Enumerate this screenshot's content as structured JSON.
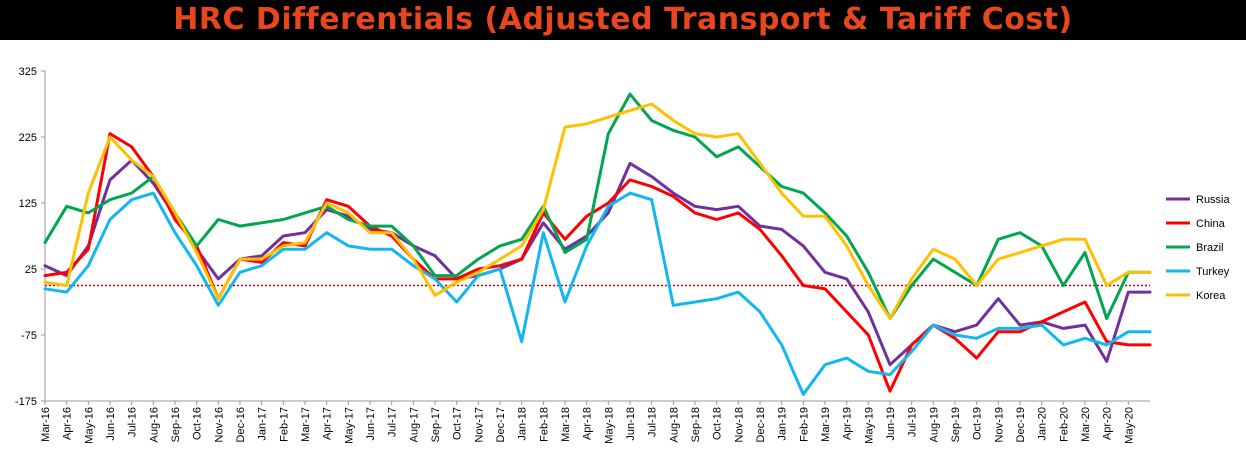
{
  "chart_data": {
    "type": "line",
    "title": "HRC Differentials (Adjusted Transport & Tariff Cost)",
    "ylim": [
      -175,
      325
    ],
    "yticks": [
      325,
      225,
      125,
      25,
      -75,
      -175
    ],
    "baseline": {
      "value": 0,
      "color": "#c00000",
      "style": "dotted"
    },
    "grid": false,
    "legend_position": "right",
    "x_tick_labels": [
      "Mar-16",
      "Apr-16",
      "May-16",
      "Jun-16",
      "Jul-16",
      "Aug-16",
      "Sep-16",
      "Oct-16",
      "Nov-16",
      "Dec-16",
      "Jan-17",
      "Feb-17",
      "Mar-17",
      "Apr-17",
      "May-17",
      "Jun-17",
      "Jul-17",
      "Aug-17",
      "Sep-17",
      "Oct-17",
      "Nov-17",
      "Dec-17",
      "Jan-18",
      "Feb-18",
      "Mar-18",
      "Apr-18",
      "May-18",
      "Jun-18",
      "Jul-18",
      "Aug-18",
      "Sep-18",
      "Oct-18",
      "Nov-18",
      "Dec-18",
      "Jan-19",
      "Feb-19",
      "Mar-19",
      "Apr-19",
      "May-19",
      "Jun-19",
      "Jul-19",
      "Aug-19",
      "Sep-19",
      "Oct-19",
      "Nov-19",
      "Dec-19",
      "Jan-20",
      "Feb-20",
      "Mar-20",
      "Apr-20",
      "May-20"
    ],
    "x_start": "Mar-16",
    "x_end": "Jun-20",
    "series": [
      {
        "name": "Russia",
        "color": "#7030a0",
        "points": [
          [
            "Mar-16",
            30
          ],
          [
            "Apr-16",
            15
          ],
          [
            "May-16",
            60
          ],
          [
            "Jun-16",
            160
          ],
          [
            "Jul-16",
            190
          ],
          [
            "Aug-16",
            155
          ],
          [
            "Sep-16",
            105
          ],
          [
            "Oct-16",
            55
          ],
          [
            "Nov-16",
            10
          ],
          [
            "Dec-16",
            40
          ],
          [
            "Jan-17",
            45
          ],
          [
            "Feb-17",
            75
          ],
          [
            "Mar-17",
            80
          ],
          [
            "Apr-17",
            115
          ],
          [
            "May-17",
            105
          ],
          [
            "Jun-17",
            85
          ],
          [
            "Jul-17",
            80
          ],
          [
            "Aug-17",
            60
          ],
          [
            "Sep-17",
            45
          ],
          [
            "Oct-17",
            10
          ],
          [
            "Nov-17",
            15
          ],
          [
            "Dec-17",
            25
          ],
          [
            "Jan-18",
            40
          ],
          [
            "Feb-18",
            95
          ],
          [
            "Mar-18",
            55
          ],
          [
            "Apr-18",
            75
          ],
          [
            "May-18",
            110
          ],
          [
            "Jun-18",
            185
          ],
          [
            "Jul-18",
            165
          ],
          [
            "Aug-18",
            140
          ],
          [
            "Sep-18",
            120
          ],
          [
            "Oct-18",
            115
          ],
          [
            "Nov-18",
            120
          ],
          [
            "Dec-18",
            90
          ],
          [
            "Jan-19",
            85
          ],
          [
            "Feb-19",
            60
          ],
          [
            "Mar-19",
            20
          ],
          [
            "Apr-19",
            10
          ],
          [
            "May-19",
            -40
          ],
          [
            "Jun-19",
            -120
          ],
          [
            "Jul-19",
            -90
          ],
          [
            "Aug-19",
            -60
          ],
          [
            "Sep-19",
            -70
          ],
          [
            "Oct-19",
            -60
          ],
          [
            "Nov-19",
            -20
          ],
          [
            "Dec-19",
            -60
          ],
          [
            "Jan-20",
            -55
          ],
          [
            "Feb-20",
            -65
          ],
          [
            "Mar-20",
            -60
          ],
          [
            "Apr-20",
            -115
          ],
          [
            "May-20",
            -10
          ],
          [
            "Jun-20",
            -10
          ]
        ]
      },
      {
        "name": "China",
        "color": "#ff0000",
        "points": [
          [
            "Mar-16",
            15
          ],
          [
            "Apr-16",
            20
          ],
          [
            "May-16",
            55
          ],
          [
            "Jun-16",
            230
          ],
          [
            "Jul-16",
            210
          ],
          [
            "Aug-16",
            165
          ],
          [
            "Sep-16",
            100
          ],
          [
            "Oct-16",
            60
          ],
          [
            "Nov-16",
            -20
          ],
          [
            "Dec-16",
            40
          ],
          [
            "Jan-17",
            35
          ],
          [
            "Feb-17",
            65
          ],
          [
            "Mar-17",
            60
          ],
          [
            "Apr-17",
            130
          ],
          [
            "May-17",
            120
          ],
          [
            "Jun-17",
            90
          ],
          [
            "Jul-17",
            75
          ],
          [
            "Aug-17",
            40
          ],
          [
            "Sep-17",
            10
          ],
          [
            "Oct-17",
            10
          ],
          [
            "Nov-17",
            25
          ],
          [
            "Dec-17",
            30
          ],
          [
            "Jan-18",
            40
          ],
          [
            "Feb-18",
            110
          ],
          [
            "Mar-18",
            70
          ],
          [
            "Apr-18",
            105
          ],
          [
            "May-18",
            125
          ],
          [
            "Jun-18",
            160
          ],
          [
            "Jul-18",
            150
          ],
          [
            "Aug-18",
            135
          ],
          [
            "Sep-18",
            110
          ],
          [
            "Oct-18",
            100
          ],
          [
            "Nov-18",
            110
          ],
          [
            "Dec-18",
            85
          ],
          [
            "Jan-19",
            45
          ],
          [
            "Feb-19",
            0
          ],
          [
            "Mar-19",
            -5
          ],
          [
            "Apr-19",
            -40
          ],
          [
            "May-19",
            -75
          ],
          [
            "Jun-19",
            -160
          ],
          [
            "Jul-19",
            -90
          ],
          [
            "Aug-19",
            -60
          ],
          [
            "Sep-19",
            -80
          ],
          [
            "Oct-19",
            -110
          ],
          [
            "Nov-19",
            -70
          ],
          [
            "Dec-19",
            -70
          ],
          [
            "Jan-20",
            -55
          ],
          [
            "Feb-20",
            -40
          ],
          [
            "Mar-20",
            -25
          ],
          [
            "Apr-20",
            -85
          ],
          [
            "May-20",
            -90
          ],
          [
            "Jun-20",
            -90
          ]
        ]
      },
      {
        "name": "Brazil",
        "color": "#00a650",
        "points": [
          [
            "Mar-16",
            65
          ],
          [
            "Apr-16",
            120
          ],
          [
            "May-16",
            110
          ],
          [
            "Jun-16",
            130
          ],
          [
            "Jul-16",
            140
          ],
          [
            "Aug-16",
            165
          ],
          [
            "Sep-16",
            110
          ],
          [
            "Oct-16",
            60
          ],
          [
            "Nov-16",
            100
          ],
          [
            "Dec-16",
            90
          ],
          [
            "Jan-17",
            95
          ],
          [
            "Feb-17",
            100
          ],
          [
            "Mar-17",
            110
          ],
          [
            "Apr-17",
            120
          ],
          [
            "May-17",
            100
          ],
          [
            "Jun-17",
            90
          ],
          [
            "Jul-17",
            90
          ],
          [
            "Aug-17",
            60
          ],
          [
            "Sep-17",
            15
          ],
          [
            "Oct-17",
            15
          ],
          [
            "Nov-17",
            40
          ],
          [
            "Dec-17",
            60
          ],
          [
            "Jan-18",
            70
          ],
          [
            "Feb-18",
            120
          ],
          [
            "Mar-18",
            50
          ],
          [
            "Apr-18",
            70
          ],
          [
            "May-18",
            230
          ],
          [
            "Jun-18",
            290
          ],
          [
            "Jul-18",
            250
          ],
          [
            "Aug-18",
            235
          ],
          [
            "Sep-18",
            225
          ],
          [
            "Oct-18",
            195
          ],
          [
            "Nov-18",
            210
          ],
          [
            "Dec-18",
            180
          ],
          [
            "Jan-19",
            150
          ],
          [
            "Feb-19",
            140
          ],
          [
            "Mar-19",
            110
          ],
          [
            "Apr-19",
            75
          ],
          [
            "May-19",
            20
          ],
          [
            "Jun-19",
            -50
          ],
          [
            "Jul-19",
            0
          ],
          [
            "Aug-19",
            40
          ],
          [
            "Sep-19",
            20
          ],
          [
            "Oct-19",
            0
          ],
          [
            "Nov-19",
            70
          ],
          [
            "Dec-19",
            80
          ],
          [
            "Jan-20",
            60
          ],
          [
            "Feb-20",
            0
          ],
          [
            "Mar-20",
            50
          ],
          [
            "Apr-20",
            -50
          ],
          [
            "May-20",
            20
          ],
          [
            "Jun-20",
            20
          ]
        ]
      },
      {
        "name": "Turkey",
        "color": "#12b7ef",
        "points": [
          [
            "Mar-16",
            -5
          ],
          [
            "Apr-16",
            -10
          ],
          [
            "May-16",
            30
          ],
          [
            "Jun-16",
            100
          ],
          [
            "Jul-16",
            130
          ],
          [
            "Aug-16",
            140
          ],
          [
            "Sep-16",
            80
          ],
          [
            "Oct-16",
            30
          ],
          [
            "Nov-16",
            -30
          ],
          [
            "Dec-16",
            20
          ],
          [
            "Jan-17",
            30
          ],
          [
            "Feb-17",
            55
          ],
          [
            "Mar-17",
            55
          ],
          [
            "Apr-17",
            80
          ],
          [
            "May-17",
            60
          ],
          [
            "Jun-17",
            55
          ],
          [
            "Jul-17",
            55
          ],
          [
            "Aug-17",
            30
          ],
          [
            "Sep-17",
            10
          ],
          [
            "Oct-17",
            -25
          ],
          [
            "Nov-17",
            15
          ],
          [
            "Dec-17",
            25
          ],
          [
            "Jan-18",
            -85
          ],
          [
            "Feb-18",
            80
          ],
          [
            "Mar-18",
            -25
          ],
          [
            "Apr-18",
            60
          ],
          [
            "May-18",
            120
          ],
          [
            "Jun-18",
            140
          ],
          [
            "Jul-18",
            130
          ],
          [
            "Aug-18",
            -30
          ],
          [
            "Sep-18",
            -25
          ],
          [
            "Oct-18",
            -20
          ],
          [
            "Nov-18",
            -10
          ],
          [
            "Dec-18",
            -40
          ],
          [
            "Jan-19",
            -90
          ],
          [
            "Feb-19",
            -165
          ],
          [
            "Mar-19",
            -120
          ],
          [
            "Apr-19",
            -110
          ],
          [
            "May-19",
            -130
          ],
          [
            "Jun-19",
            -135
          ],
          [
            "Jul-19",
            -100
          ],
          [
            "Aug-19",
            -60
          ],
          [
            "Sep-19",
            -75
          ],
          [
            "Oct-19",
            -80
          ],
          [
            "Nov-19",
            -65
          ],
          [
            "Dec-19",
            -65
          ],
          [
            "Jan-20",
            -60
          ],
          [
            "Feb-20",
            -90
          ],
          [
            "Mar-20",
            -80
          ],
          [
            "Apr-20",
            -90
          ],
          [
            "May-20",
            -70
          ],
          [
            "Jun-20",
            -70
          ]
        ]
      },
      {
        "name": "Korea",
        "color": "#ffc000",
        "points": [
          [
            "Mar-16",
            5
          ],
          [
            "Apr-16",
            0
          ],
          [
            "May-16",
            140
          ],
          [
            "Jun-16",
            225
          ],
          [
            "Jul-16",
            190
          ],
          [
            "Aug-16",
            165
          ],
          [
            "Sep-16",
            110
          ],
          [
            "Oct-16",
            50
          ],
          [
            "Nov-16",
            -20
          ],
          [
            "Dec-16",
            40
          ],
          [
            "Jan-17",
            40
          ],
          [
            "Feb-17",
            60
          ],
          [
            "Mar-17",
            65
          ],
          [
            "Apr-17",
            125
          ],
          [
            "May-17",
            110
          ],
          [
            "Jun-17",
            80
          ],
          [
            "Jul-17",
            80
          ],
          [
            "Aug-17",
            40
          ],
          [
            "Sep-17",
            -15
          ],
          [
            "Oct-17",
            5
          ],
          [
            "Nov-17",
            20
          ],
          [
            "Dec-17",
            40
          ],
          [
            "Jan-18",
            60
          ],
          [
            "Feb-18",
            115
          ],
          [
            "Mar-18",
            240
          ],
          [
            "Apr-18",
            245
          ],
          [
            "May-18",
            255
          ],
          [
            "Jun-18",
            265
          ],
          [
            "Jul-18",
            275
          ],
          [
            "Aug-18",
            250
          ],
          [
            "Sep-18",
            230
          ],
          [
            "Oct-18",
            225
          ],
          [
            "Nov-18",
            230
          ],
          [
            "Dec-18",
            185
          ],
          [
            "Jan-19",
            140
          ],
          [
            "Feb-19",
            105
          ],
          [
            "Mar-19",
            105
          ],
          [
            "Apr-19",
            60
          ],
          [
            "May-19",
            0
          ],
          [
            "Jun-19",
            -50
          ],
          [
            "Jul-19",
            10
          ],
          [
            "Aug-19",
            55
          ],
          [
            "Sep-19",
            40
          ],
          [
            "Oct-19",
            0
          ],
          [
            "Nov-19",
            40
          ],
          [
            "Dec-19",
            50
          ],
          [
            "Jan-20",
            60
          ],
          [
            "Feb-20",
            70
          ],
          [
            "Mar-20",
            70
          ],
          [
            "Apr-20",
            0
          ],
          [
            "May-20",
            20
          ],
          [
            "Jun-20",
            20
          ]
        ]
      }
    ]
  }
}
